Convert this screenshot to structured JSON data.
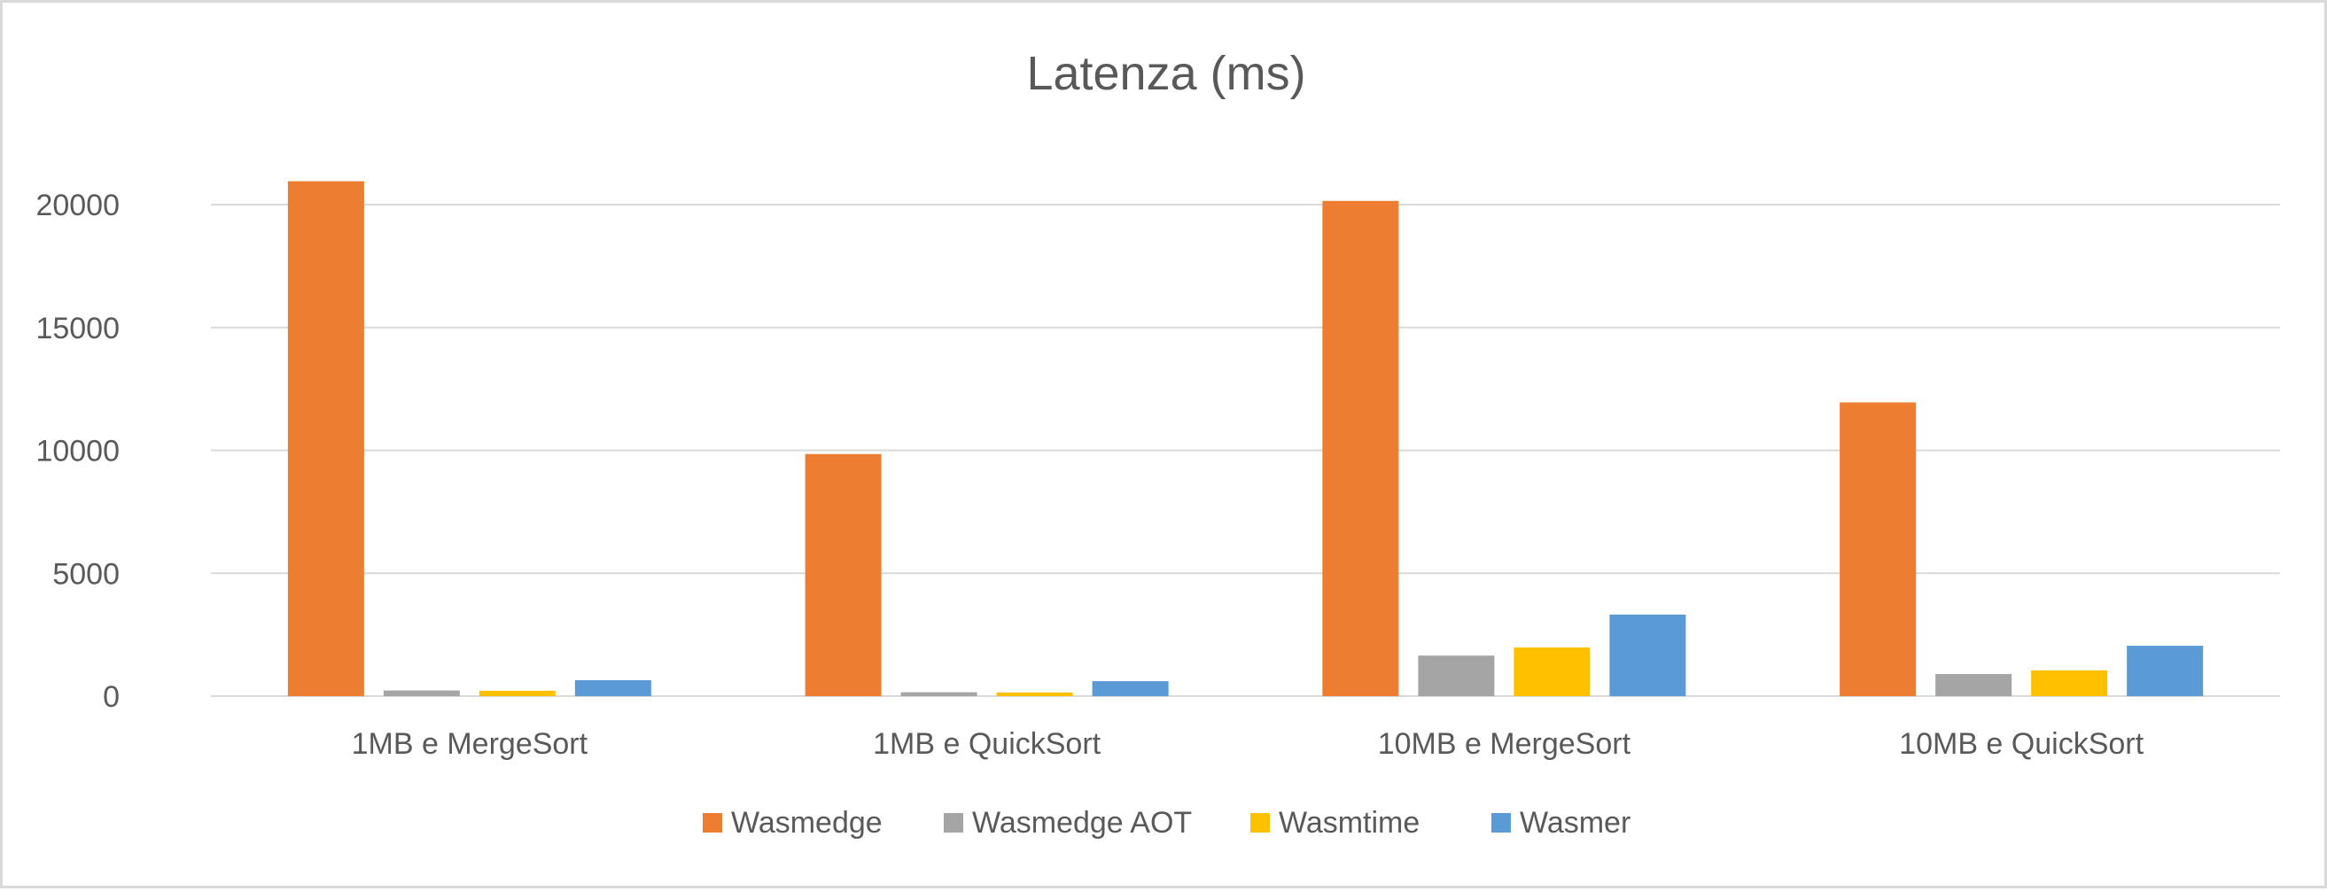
{
  "chart_data": {
    "type": "bar",
    "title": "Latenza (ms)",
    "categories": [
      "1MB e MergeSort",
      "1MB e QuickSort",
      "10MB e MergeSort",
      "10MB e QuickSort"
    ],
    "series": [
      {
        "name": "Wasmedge",
        "color": "#ED7D31",
        "values": [
          20950,
          9850,
          20150,
          11950
        ]
      },
      {
        "name": "Wasmedge AOT",
        "color": "#A5A5A5",
        "values": [
          230,
          160,
          1650,
          900
        ]
      },
      {
        "name": "Wasmtime",
        "color": "#FFC000",
        "values": [
          220,
          150,
          1980,
          1050
        ]
      },
      {
        "name": "Wasmer",
        "color": "#5B9BD5",
        "values": [
          650,
          610,
          3320,
          2050
        ]
      }
    ],
    "yticks": [
      "0",
      "5000",
      "10000",
      "15000",
      "20000"
    ],
    "ylim": [
      0,
      20000
    ],
    "grid": true,
    "legend_position": "bottom"
  }
}
